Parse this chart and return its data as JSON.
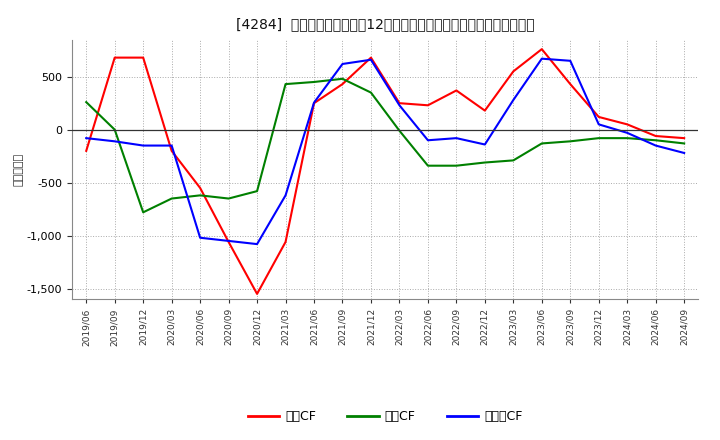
{
  "title": "[4284]  キャッシュフローの12か月移動合計の対前年同期増減額の推移",
  "ylabel": "（百万円）",
  "background_color": "#ffffff",
  "plot_bg_color": "#ffffff",
  "grid_color": "#aaaaaa",
  "ylim": [
    -1600,
    850
  ],
  "yticks": [
    -1500,
    -1000,
    -500,
    0,
    500
  ],
  "x_labels": [
    "2019/06",
    "2019/09",
    "2019/12",
    "2020/03",
    "2020/06",
    "2020/09",
    "2020/12",
    "2021/03",
    "2021/06",
    "2021/09",
    "2021/12",
    "2022/03",
    "2022/06",
    "2022/09",
    "2022/12",
    "2023/03",
    "2023/06",
    "2023/09",
    "2023/12",
    "2024/03",
    "2024/06",
    "2024/09"
  ],
  "series": {
    "営業CF": {
      "color": "#ff0000",
      "values": [
        -200,
        680,
        680,
        -200,
        -550,
        -1060,
        -1550,
        -1060,
        250,
        430,
        680,
        250,
        230,
        370,
        180,
        550,
        760,
        430,
        120,
        50,
        -60,
        -80
      ]
    },
    "投資CF": {
      "color": "#008000",
      "values": [
        260,
        0,
        -780,
        -650,
        -620,
        -650,
        -580,
        430,
        450,
        480,
        350,
        -10,
        -340,
        -340,
        -310,
        -290,
        -130,
        -110,
        -80,
        -80,
        -100,
        -130
      ]
    },
    "フリーCF": {
      "color": "#0000ff",
      "values": [
        -80,
        -110,
        -150,
        -150,
        -1020,
        -1050,
        -1080,
        -620,
        255,
        620,
        660,
        230,
        -100,
        -80,
        -140,
        280,
        670,
        650,
        50,
        -30,
        -150,
        -220
      ]
    }
  },
  "legend_labels": [
    "営業CF",
    "投資CF",
    "フリーCF"
  ],
  "legend_colors": [
    "#ff0000",
    "#008000",
    "#0000ff"
  ]
}
